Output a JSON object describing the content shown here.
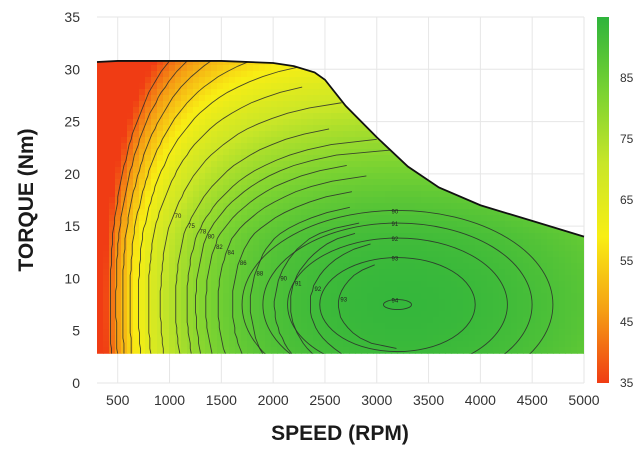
{
  "chart_data": {
    "type": "heatmap",
    "subtype": "efficiency-contour-map",
    "xlabel": "SPEED (RPM)",
    "ylabel": "TORQUE (Nm)",
    "xlim": [
      300,
      5000
    ],
    "ylim": [
      0,
      35
    ],
    "x_ticks": [
      "500",
      "1000",
      "1500",
      "2000",
      "2500",
      "3000",
      "3500",
      "4000",
      "4500",
      "5000"
    ],
    "y_ticks": [
      "0",
      "5",
      "10",
      "15",
      "20",
      "25",
      "30",
      "35"
    ],
    "grid": true,
    "colorbar": {
      "range": [
        35,
        95
      ],
      "ticks": [
        "35",
        "45",
        "55",
        "65",
        "75",
        "85"
      ],
      "colors": [
        "#f03c14",
        "#f5a014",
        "#f8ee14",
        "#c8e628",
        "#78d232",
        "#2eb43c"
      ],
      "placement": "right"
    },
    "max_torque_envelope": {
      "x": [
        300,
        500,
        1000,
        1500,
        2000,
        2200,
        2400,
        2500,
        2700,
        3000,
        3300,
        3600,
        4000,
        4500,
        5000
      ],
      "y": [
        30.7,
        30.8,
        30.8,
        30.8,
        30.6,
        30.3,
        29.7,
        29.0,
        26.5,
        23.5,
        20.7,
        18.7,
        17.0,
        15.5,
        14.0
      ]
    },
    "min_torque": 2.8,
    "efficiency_peak": {
      "x": 3200,
      "y": 7.5,
      "value": 94
    },
    "contour_levels": [
      40,
      45,
      50,
      55,
      60,
      65,
      70,
      75,
      78,
      80,
      82,
      84,
      86,
      88,
      90,
      91,
      92,
      93,
      94
    ],
    "contour_labels": [
      "70",
      "75",
      "78",
      "80",
      "82",
      "84",
      "86",
      "88",
      "90",
      "91",
      "92",
      "93",
      "94"
    ]
  }
}
